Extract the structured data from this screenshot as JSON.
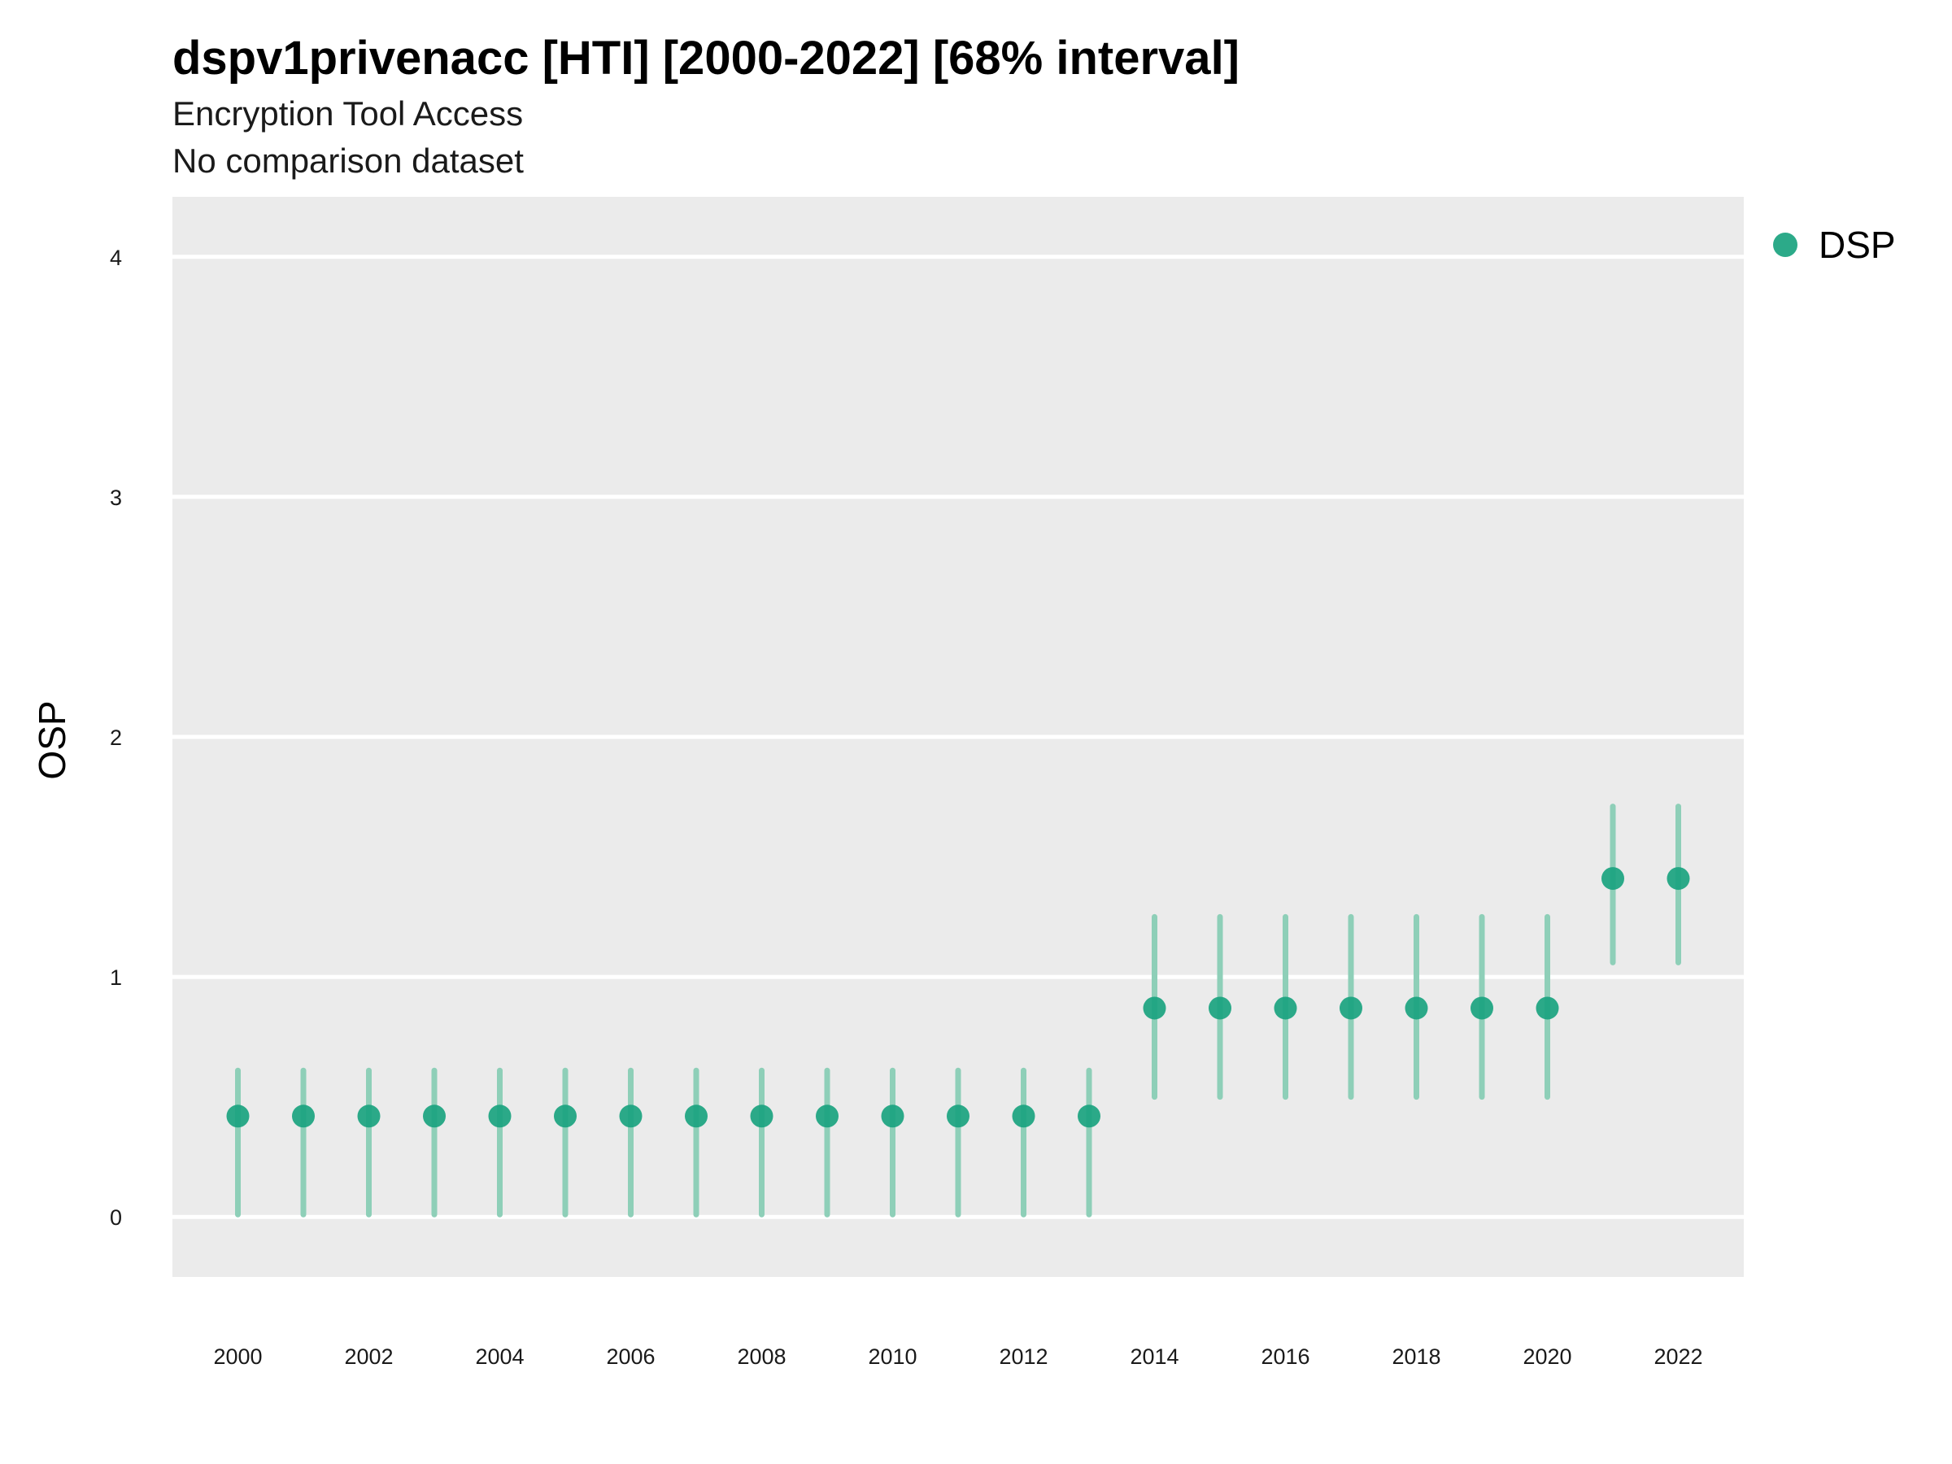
{
  "chart_data": {
    "type": "scatter",
    "title": "dspv1privenacc [HTI] [2000-2022] [68% interval]",
    "subtitle": "Encryption Tool Access",
    "subtitle2": "No comparison dataset",
    "xlabel": "",
    "ylabel": "OSP",
    "xlim": [
      1999,
      2023
    ],
    "ylim": [
      -0.25,
      4.25
    ],
    "xticks": [
      "2000",
      "2002",
      "2004",
      "2006",
      "2008",
      "2010",
      "2012",
      "2014",
      "2016",
      "2018",
      "2020",
      "2022"
    ],
    "yticks": [
      "0",
      "1",
      "2",
      "3",
      "4"
    ],
    "grid": true,
    "legend_position": "right-top",
    "colors": {
      "point": "#1aa37f",
      "interval": "#8ecfb8",
      "panel": "#ebebeb",
      "grid": "#ffffff"
    },
    "series": [
      {
        "name": "DSP",
        "x": [
          2000,
          2001,
          2002,
          2003,
          2004,
          2005,
          2006,
          2007,
          2008,
          2009,
          2010,
          2011,
          2012,
          2013,
          2014,
          2015,
          2016,
          2017,
          2018,
          2019,
          2020,
          2021,
          2022
        ],
        "y": [
          0.42,
          0.42,
          0.42,
          0.42,
          0.42,
          0.42,
          0.42,
          0.42,
          0.42,
          0.42,
          0.42,
          0.42,
          0.42,
          0.42,
          0.87,
          0.87,
          0.87,
          0.87,
          0.87,
          0.87,
          0.87,
          1.41,
          1.41
        ],
        "lower": [
          0.01,
          0.01,
          0.01,
          0.01,
          0.01,
          0.01,
          0.01,
          0.01,
          0.01,
          0.01,
          0.01,
          0.01,
          0.01,
          0.01,
          0.5,
          0.5,
          0.5,
          0.5,
          0.5,
          0.5,
          0.5,
          1.06,
          1.06
        ],
        "upper": [
          0.61,
          0.61,
          0.61,
          0.61,
          0.61,
          0.61,
          0.61,
          0.61,
          0.61,
          0.61,
          0.61,
          0.61,
          0.61,
          0.61,
          1.25,
          1.25,
          1.25,
          1.25,
          1.25,
          1.25,
          1.25,
          1.71,
          1.71
        ]
      }
    ]
  }
}
